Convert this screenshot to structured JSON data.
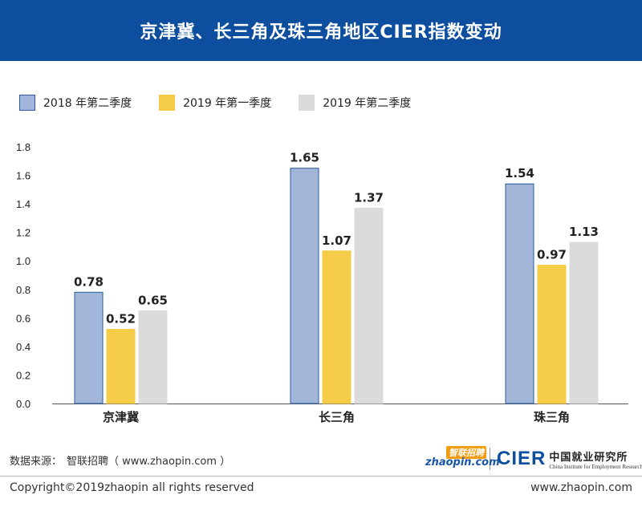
{
  "header": {
    "title": "京津冀、长三角及珠三角地区CIER指数变动"
  },
  "chart_data": {
    "type": "bar",
    "categories": [
      "京津冀",
      "长三角",
      "珠三角"
    ],
    "series": [
      {
        "name": "2018  年第二季度",
        "values": [
          0.78,
          1.65,
          1.54
        ],
        "color": "#a1b6d9",
        "stroke": "#2d5a9a"
      },
      {
        "name": "2019 年第一季度",
        "values": [
          0.52,
          1.07,
          0.97
        ],
        "color": "#f5cc47",
        "stroke": "#f5cc47"
      },
      {
        "name": "2019 年第二季度",
        "values": [
          0.65,
          1.37,
          1.13
        ],
        "color": "#dbdbdb",
        "stroke": "#dbdbdb"
      }
    ],
    "value_labels": [
      [
        "0.78",
        "1.65",
        "1.54"
      ],
      [
        "0.52",
        "1.07",
        "0.97"
      ],
      [
        "0.65",
        "1.37",
        "1.13"
      ]
    ],
    "yticks": [
      "0.0",
      "0.2",
      "0.4",
      "0.6",
      "0.8",
      "1.0",
      "1.2",
      "1.4",
      "1.6",
      "1.8"
    ],
    "ylim": [
      0,
      1.8
    ],
    "legend_position": "top-left",
    "grid": false
  },
  "source": {
    "label": "数据来源：",
    "text": "智联招聘（ www.zhaopin.com ）"
  },
  "logos": {
    "zhaopin_top": "智联招聘",
    "zhaopin_bottom": "zhaopin.com",
    "cier_mark": "CIER",
    "cier_cn": "中国就业研究所",
    "cier_en": "China Institute for Employment Research"
  },
  "footer": {
    "copyright": "Copyright©2019zhaopin all rights reserved",
    "site": "www.zhaopin.com"
  }
}
